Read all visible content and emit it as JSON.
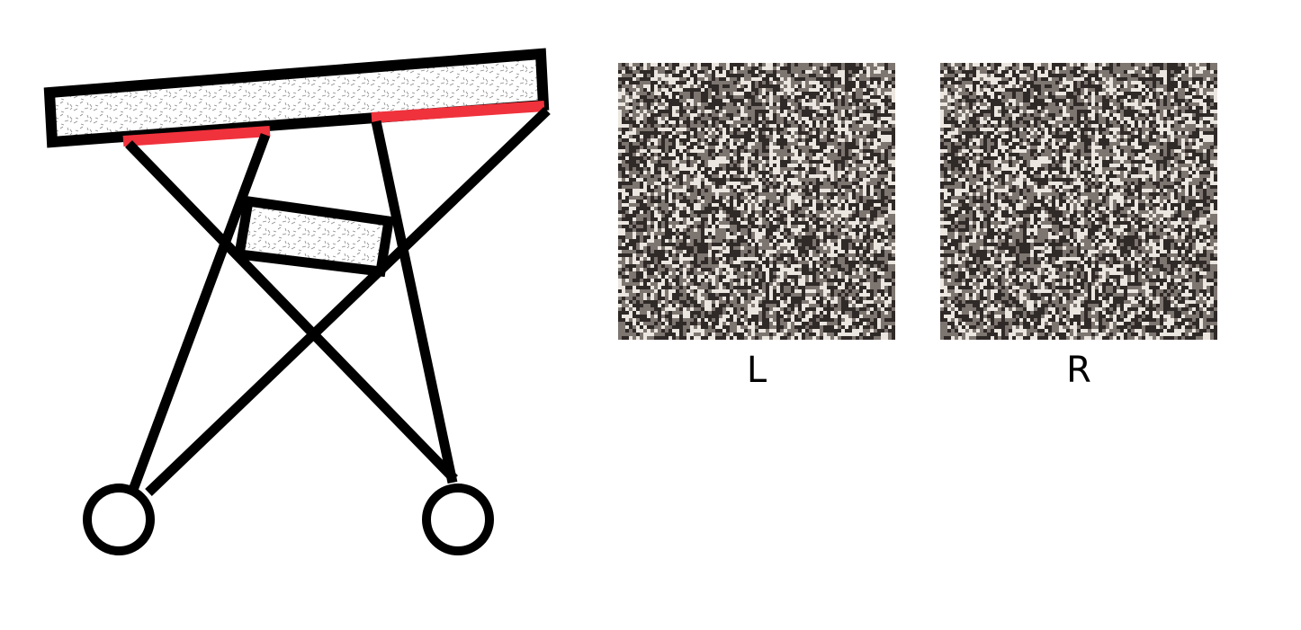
{
  "labels": {
    "left": "L",
    "right": "R"
  },
  "colors": {
    "stroke": "#000000",
    "sensor": "#f0323c",
    "noise_base": "#7d7570",
    "noise_dark": "#2f2927",
    "noise_light": "#ece6e0"
  },
  "icons": {
    "left_eye": "circle-eye-icon",
    "right_eye": "circle-eye-icon"
  }
}
